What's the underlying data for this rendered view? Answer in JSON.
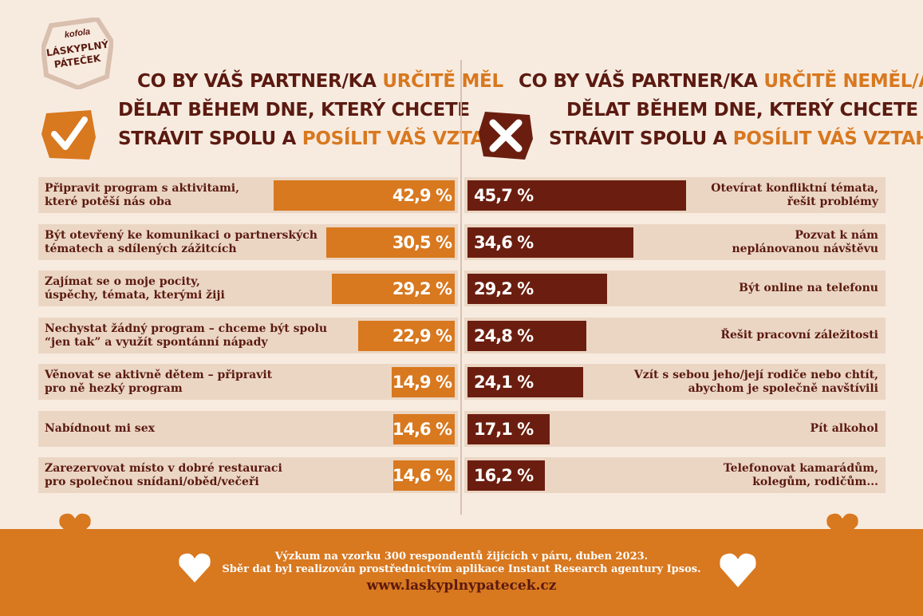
{
  "logo": {
    "brand": "kofola",
    "line1": "LÁSKYPLNÝ",
    "line2": "PÁTEČEK"
  },
  "left_heading": {
    "line1_a": "CO BY VÁŠ PARTNER/KA ",
    "line1_b": "URČITĚ MĚL",
    "line2": "DĚLAT BĚHEM DNE, KTERÝ CHCETE",
    "line3_a": "STRÁVIT SPOLU A ",
    "line3_b": "POSÍLIT VÁŠ VZTAH?"
  },
  "right_heading": {
    "line1_a": "CO BY VÁŠ PARTNER/KA ",
    "line1_b": "URČITĚ NEMĚL/A",
    "line2": "DĚLAT BĚHEM DNE, KTERÝ CHCETE",
    "line3_a": "STRÁVIT SPOLU A ",
    "line3_b": "POSÍLIT VÁŠ VZTAH?"
  },
  "icons": {
    "left": "checkmark-icon",
    "right": "cross-icon",
    "heart": "heart-icon"
  },
  "colors": {
    "left_bar": "#d8781f",
    "right_bar": "#6b1e0f",
    "row_bg": "#ebd6c4",
    "text": "#5b1a10",
    "footer": "#d8781f"
  },
  "chart_data": [
    {
      "type": "bar",
      "orientation": "horizontal",
      "categories": [
        [
          "Připravit program s aktivitami,",
          "které potěší nás oba"
        ],
        [
          "Být otevřený ke komunikaci o partnerských",
          "tématech a sdílených zážitcích"
        ],
        [
          "Zajímat se o moje pocity,",
          "úspěchy, témata, kterými žiji"
        ],
        [
          "Nechystat žádný program – chceme být spolu",
          "“jen tak” a využít spontánní nápady"
        ],
        [
          "Věnovat se aktivně dětem – připravit",
          "pro ně hezký program"
        ],
        [
          "Nabídnout mi sex"
        ],
        [
          "Zarezervovat místo v dobré restauraci",
          "pro společnou snídani/oběd/večeři"
        ]
      ],
      "values": [
        42.9,
        30.5,
        29.2,
        22.9,
        14.9,
        14.6,
        14.6
      ],
      "value_labels": [
        "42,9 %",
        "30,5 %",
        "29,2 %",
        "22,9 %",
        "14,9 %",
        "14,6 %",
        "14,6 %"
      ]
    },
    {
      "type": "bar",
      "orientation": "horizontal",
      "categories": [
        [
          "Otevírat konfliktní témata,",
          "řešit problémy"
        ],
        [
          "Pozvat k nám",
          "neplánovanou návštěvu"
        ],
        [
          "Být online na telefonu"
        ],
        [
          "Řešit pracovní záležitosti"
        ],
        [
          "Vzít s sebou jeho/její rodiče nebo chtít,",
          "abychom je společně navštívili"
        ],
        [
          "Pít alkohol"
        ],
        [
          "Telefonovat kamarádům,",
          "kolegům, rodičům..."
        ]
      ],
      "values": [
        45.7,
        34.6,
        29.2,
        24.8,
        24.1,
        17.1,
        16.2
      ],
      "value_labels": [
        "45,7 %",
        "34,6 %",
        "29,2 %",
        "24,8 %",
        "24,1 %",
        "17,1 %",
        "16,2 %"
      ]
    }
  ],
  "footer": {
    "line1": "Výzkum na vzorku 300 respondentů žijících v páru, duben 2023.",
    "line2": "Sběr dat byl realizován prostřednictvím aplikace Instant Research agentury Ipsos.",
    "url": "www.laskyplnypatecek.cz"
  }
}
